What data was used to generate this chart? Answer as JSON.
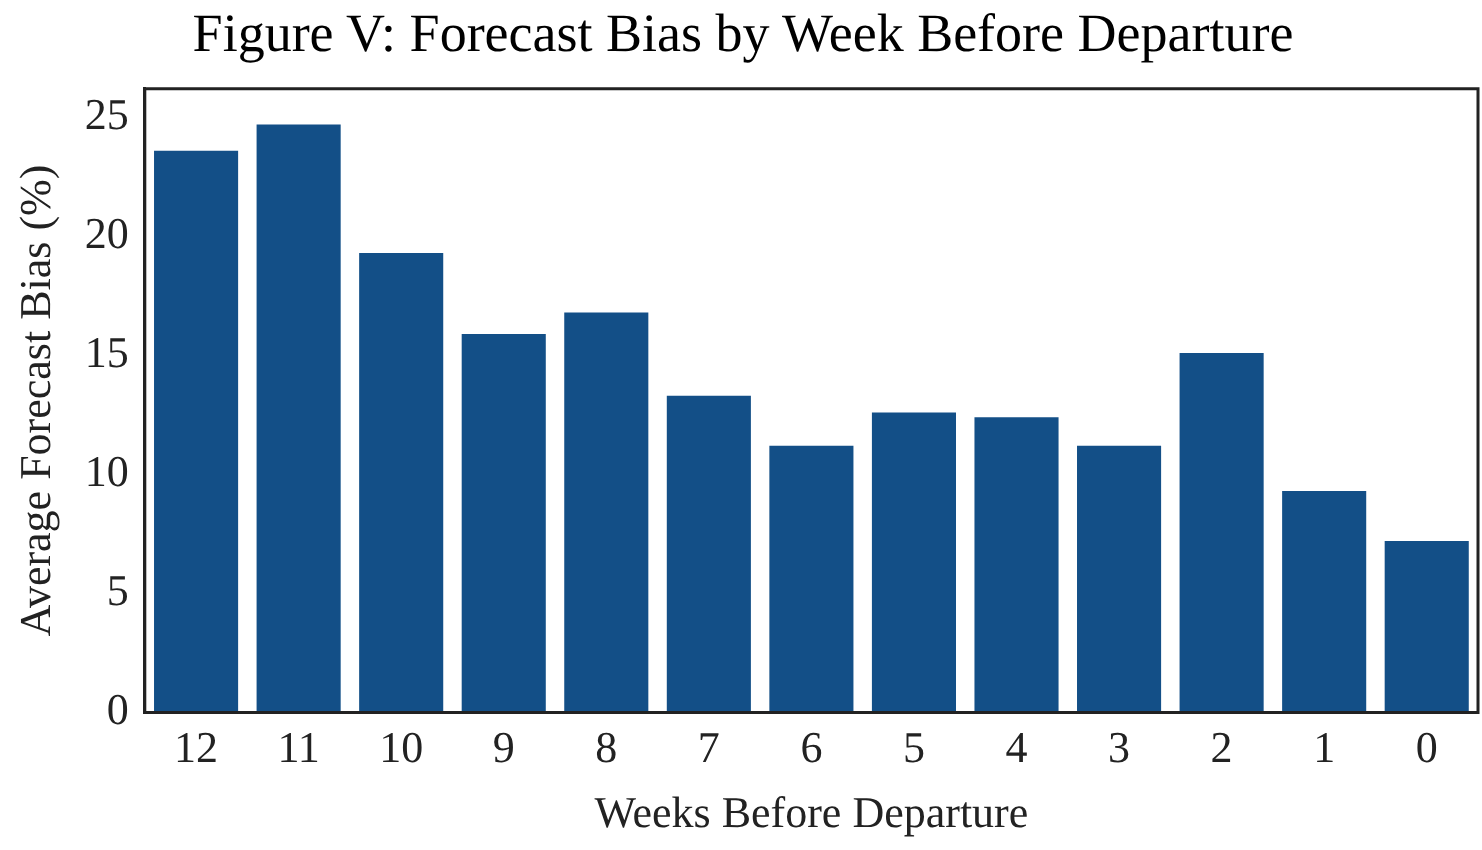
{
  "chart_data": {
    "type": "bar",
    "title": "Figure V: Forecast Bias by Week Before Departure",
    "xlabel": "Weeks Before Departure",
    "ylabel": "Average Forecast Bias (%)",
    "categories": [
      "12",
      "11",
      "10",
      "9",
      "8",
      "7",
      "6",
      "5",
      "4",
      "3",
      "2",
      "1",
      "0"
    ],
    "values": [
      23.6,
      24.7,
      19.3,
      15.9,
      16.8,
      13.3,
      11.2,
      12.6,
      12.4,
      11.2,
      15.1,
      9.3,
      7.2
    ],
    "color": "#134f87",
    "ylim": [
      0,
      26.2
    ],
    "yticks": [
      0,
      5,
      10,
      15,
      20,
      25
    ],
    "grid": false,
    "legend": false
  }
}
